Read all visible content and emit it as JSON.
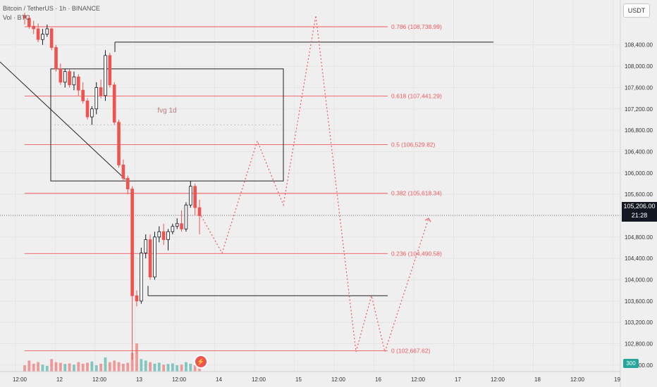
{
  "header": {
    "symbol_line": "Bitcoin / TetherUS · 1h · BINANCE",
    "volume_line": "Vol · BTC"
  },
  "currency_button": "USDT",
  "price_badge": {
    "price": "105,206.00",
    "countdown": "21:28"
  },
  "volume_badge": "300",
  "colors": {
    "up": "#26a69a",
    "down": "#ef5350",
    "fib": "#f0595b",
    "background": "#efefef"
  },
  "chart_data": {
    "type": "candlestick",
    "y_axis_labels": [
      "108,400.00",
      "108,000.00",
      "107,600.00",
      "107,200.00",
      "106,800.00",
      "106,400.00",
      "106,000.00",
      "105,600.00",
      "105,200.00",
      "104,800.00",
      "104,400.00",
      "104,000.00",
      "103,600.00",
      "103,200.00",
      "102,800.00",
      "102,400.00"
    ],
    "ylim": [
      102280,
      109240
    ],
    "x_axis_labels": [
      "12:00",
      "12",
      "12:00",
      "13",
      "12:00",
      "14",
      "12:00",
      "15",
      "12:00",
      "16",
      "12:00",
      "17",
      "12:00",
      "18",
      "12:00",
      "19"
    ],
    "candles": [
      [
        108950,
        109000,
        108780,
        108900
      ],
      [
        108900,
        108950,
        108700,
        108750
      ],
      [
        108750,
        108850,
        108600,
        108700
      ],
      [
        108700,
        108800,
        108450,
        108500
      ],
      [
        108500,
        108700,
        108400,
        108600
      ],
      [
        108600,
        108780,
        108550,
        108700
      ],
      [
        108700,
        108720,
        108300,
        108350
      ],
      [
        108350,
        108400,
        107900,
        107950
      ],
      [
        107950,
        108050,
        107650,
        107700
      ],
      [
        107700,
        107950,
        107600,
        107900
      ],
      [
        107900,
        107950,
        107600,
        107650
      ],
      [
        107650,
        107900,
        107550,
        107800
      ],
      [
        107800,
        107850,
        107450,
        107550
      ],
      [
        107550,
        107700,
        107300,
        107350
      ],
      [
        107350,
        107400,
        107000,
        107050
      ],
      [
        107050,
        107250,
        106900,
        107200
      ],
      [
        107200,
        107700,
        107100,
        107600
      ],
      [
        107600,
        107750,
        107400,
        107450
      ],
      [
        107450,
        108300,
        107350,
        108200
      ],
      [
        108200,
        108250,
        107600,
        107650
      ],
      [
        107650,
        107700,
        106900,
        106950
      ],
      [
        106950,
        107000,
        106100,
        106150
      ],
      [
        106150,
        106250,
        105850,
        105900
      ],
      [
        105900,
        105950,
        105600,
        105700
      ],
      [
        105700,
        105750,
        102500,
        103700
      ],
      [
        103700,
        103800,
        103500,
        103600
      ],
      [
        103600,
        104600,
        103550,
        104500
      ],
      [
        104500,
        104850,
        104400,
        104750
      ],
      [
        104750,
        104850,
        104000,
        104050
      ],
      [
        104050,
        104900,
        104000,
        104800
      ],
      [
        104800,
        105000,
        104700,
        104900
      ],
      [
        104900,
        105050,
        104650,
        104750
      ],
      [
        104750,
        104950,
        104550,
        104900
      ],
      [
        104900,
        105050,
        104850,
        105000
      ],
      [
        105000,
        105150,
        104950,
        105050
      ],
      [
        105050,
        105300,
        104900,
        104950
      ],
      [
        104950,
        105450,
        104900,
        105400
      ],
      [
        105400,
        105850,
        105350,
        105750
      ],
      [
        105750,
        105800,
        105200,
        105350
      ],
      [
        105350,
        105500,
        104850,
        105200
      ]
    ],
    "volumes": [
      20,
      35,
      25,
      30,
      22,
      18,
      40,
      30,
      28,
      24,
      26,
      22,
      30,
      25,
      28,
      32,
      20,
      25,
      45,
      30,
      35,
      30,
      25,
      28,
      60,
      90,
      40,
      35,
      30,
      25,
      28,
      22,
      24,
      26,
      20,
      22,
      30,
      25,
      20,
      18
    ],
    "fib_levels": [
      {
        "ratio": "0.786",
        "price": 108738.99,
        "label": "0.786 (108,738.99)"
      },
      {
        "ratio": "0.618",
        "price": 107441.29,
        "label": "0.618 (107,441.29)"
      },
      {
        "ratio": "0.5",
        "price": 106529.82,
        "label": "0.5 (106,529.82)"
      },
      {
        "ratio": "0.382",
        "price": 105618.34,
        "label": "0.382 (105,618.34)"
      },
      {
        "ratio": "0.236",
        "price": 104490.58,
        "label": "0.236 (104,490.58)"
      },
      {
        "ratio": "0",
        "price": 102667.62,
        "label": "0 (102,667.62)"
      }
    ],
    "current_price": 105206.0,
    "fvg_label": "fvg 1d",
    "fvg_zone": {
      "top": 107950,
      "bottom": 105850
    },
    "resistance_line": 108450,
    "support_line": 103700,
    "projection_path": [
      105250,
      104500,
      106600,
      105400,
      108950,
      102650,
      103700,
      102650,
      105150
    ],
    "grid": true,
    "legend": "none"
  }
}
